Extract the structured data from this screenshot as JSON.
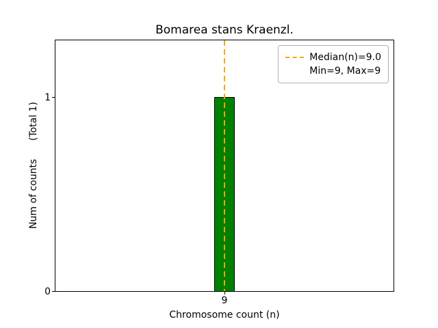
{
  "figure": {
    "title": "Bomarea stans Kraenzl.",
    "xlabel": "Chromosome count (n)",
    "ylabel": "Num of counts      (Total 1)",
    "x_tick": "9",
    "y_ticks": [
      "1",
      "0"
    ],
    "legend": {
      "median_label": "Median(n)=9.0",
      "minmax_label": "Min=9, Max=9"
    },
    "colors": {
      "bar_fill": "#008000",
      "bar_edge": "#000000",
      "median_line": "#FFA500",
      "legend_border": "#b0b0b0"
    }
  },
  "chart_data": {
    "type": "bar",
    "title": "Bomarea stans Kraenzl.",
    "xlabel": "Chromosome count (n)",
    "ylabel": "Num of counts (Total 1)",
    "categories": [
      9
    ],
    "values": [
      1
    ],
    "total_counts": 1,
    "ylim": [
      0,
      1.3
    ],
    "yticks": [
      0,
      1
    ],
    "grid": false,
    "legend_position": "upper right",
    "median_line": {
      "x": 9,
      "label": "Median(n)=9.0",
      "style": "dashed",
      "color": "#FFA500"
    },
    "annotations": [
      "Min=9, Max=9"
    ],
    "stats": {
      "median": 9.0,
      "min": 9,
      "max": 9
    }
  }
}
